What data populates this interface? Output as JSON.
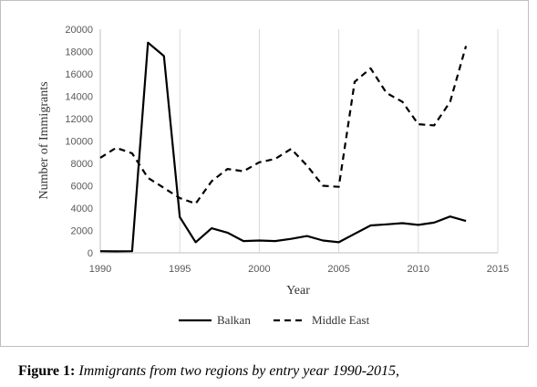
{
  "chart_data": {
    "type": "line",
    "xlabel": "Year",
    "ylabel": "Number of Immigrants",
    "xlim": [
      1990,
      2015
    ],
    "ylim": [
      0,
      20000
    ],
    "xticks": [
      1990,
      1995,
      2000,
      2005,
      2010,
      2015
    ],
    "yticks": [
      0,
      2000,
      4000,
      6000,
      8000,
      10000,
      12000,
      14000,
      16000,
      18000,
      20000
    ],
    "grid": "vertical",
    "legend_position": "bottom",
    "series": [
      {
        "name": "Balkan",
        "style": "solid",
        "color": "#000000",
        "points": [
          [
            1990,
            150
          ],
          [
            1991,
            130
          ],
          [
            1992,
            150
          ],
          [
            1993,
            18800
          ],
          [
            1994,
            17600
          ],
          [
            1995,
            3200
          ],
          [
            1996,
            950
          ],
          [
            1997,
            2200
          ],
          [
            1998,
            1800
          ],
          [
            1999,
            1050
          ],
          [
            2000,
            1100
          ],
          [
            2001,
            1050
          ],
          [
            2002,
            1250
          ],
          [
            2003,
            1500
          ],
          [
            2004,
            1100
          ],
          [
            2005,
            950
          ],
          [
            2006,
            1700
          ],
          [
            2007,
            2450
          ],
          [
            2008,
            2550
          ],
          [
            2009,
            2650
          ],
          [
            2010,
            2500
          ],
          [
            2011,
            2700
          ],
          [
            2012,
            3250
          ],
          [
            2013,
            2850
          ]
        ]
      },
      {
        "name": "Middle East",
        "style": "dashed",
        "color": "#000000",
        "points": [
          [
            1990,
            8500
          ],
          [
            1991,
            9400
          ],
          [
            1992,
            8900
          ],
          [
            1993,
            6700
          ],
          [
            1994,
            5800
          ],
          [
            1995,
            4900
          ],
          [
            1996,
            4400
          ],
          [
            1997,
            6400
          ],
          [
            1998,
            7500
          ],
          [
            1999,
            7300
          ],
          [
            2000,
            8100
          ],
          [
            2001,
            8400
          ],
          [
            2002,
            9300
          ],
          [
            2003,
            7800
          ],
          [
            2004,
            6000
          ],
          [
            2005,
            5900
          ],
          [
            2006,
            15300
          ],
          [
            2007,
            16500
          ],
          [
            2008,
            14300
          ],
          [
            2009,
            13500
          ],
          [
            2010,
            11500
          ],
          [
            2011,
            11400
          ],
          [
            2012,
            13500
          ],
          [
            2013,
            18500
          ]
        ]
      }
    ]
  },
  "caption": {
    "label": "Figure 1:",
    "text": "Immigrants from two regions by entry year 1990-2015",
    "suffix": ","
  }
}
